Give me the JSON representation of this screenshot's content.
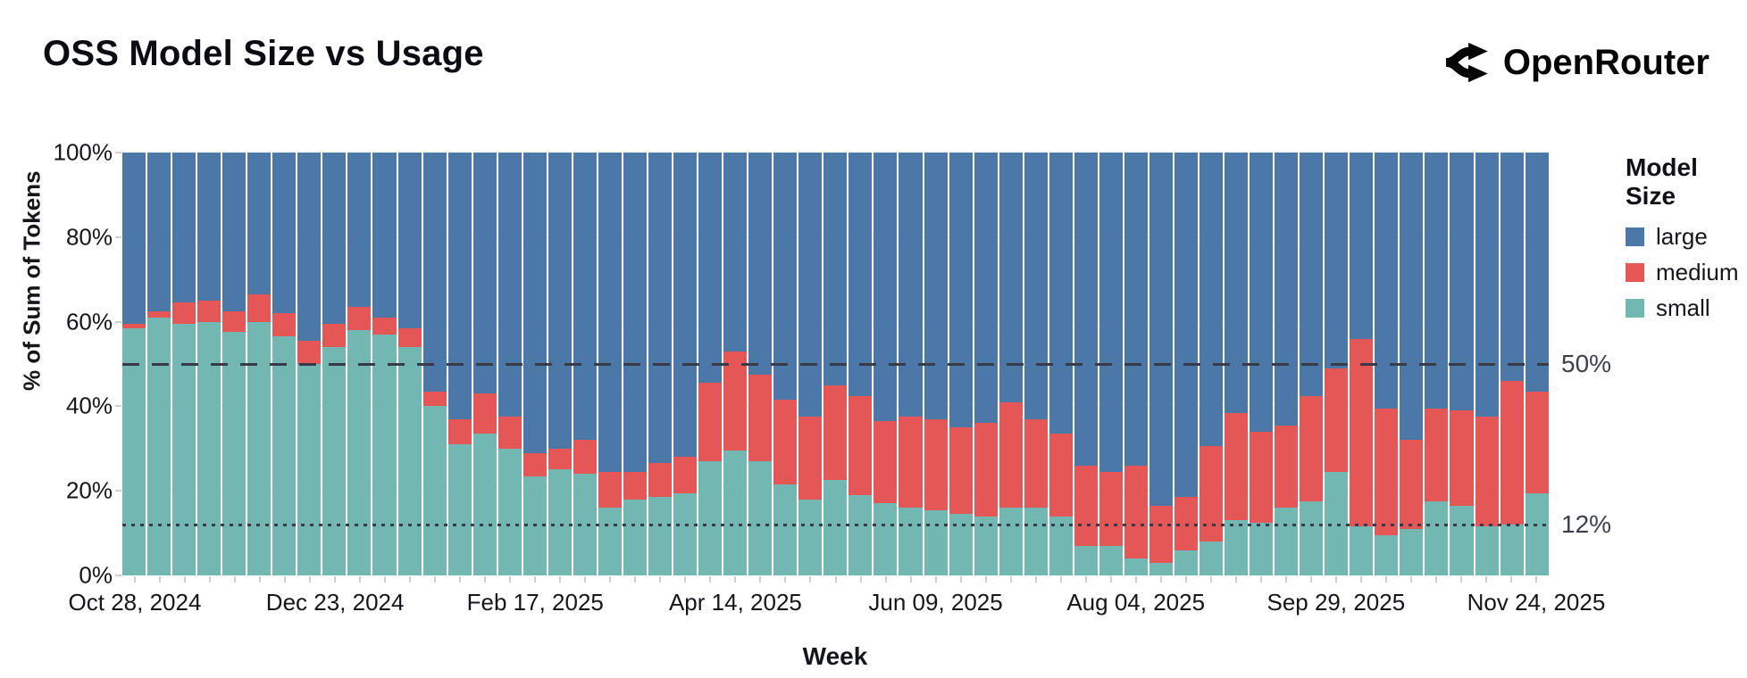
{
  "header": {
    "title": "OSS Model Size vs Usage",
    "brand": "OpenRouter"
  },
  "chart_data": {
    "type": "bar",
    "stacked": true,
    "normalized_percent": true,
    "title": "OSS Model Size vs Usage",
    "xlabel": "Week",
    "ylabel": "% of Sum of Tokens",
    "ylim": [
      0,
      100
    ],
    "weeks_count": 57,
    "y_ticks": [
      {
        "value": 100,
        "label": "100%"
      },
      {
        "value": 80,
        "label": "80%"
      },
      {
        "value": 60,
        "label": "60%"
      },
      {
        "value": 40,
        "label": "40%"
      },
      {
        "value": 20,
        "label": "20%"
      },
      {
        "value": 0,
        "label": "0%"
      }
    ],
    "x_ticks": [
      {
        "index": 0,
        "label": "Oct 28, 2024"
      },
      {
        "index": 8,
        "label": "Dec 23, 2024"
      },
      {
        "index": 16,
        "label": "Feb 17, 2025"
      },
      {
        "index": 24,
        "label": "Apr 14, 2025"
      },
      {
        "index": 32,
        "label": "Jun 09, 2025"
      },
      {
        "index": 40,
        "label": "Aug 04, 2025"
      },
      {
        "index": 48,
        "label": "Sep 29, 2025"
      },
      {
        "index": 56,
        "label": "Nov 24, 2025"
      }
    ],
    "legend_title": "Model Size",
    "legend_position": "top-right",
    "stack_order_bottom_to_top": [
      "small",
      "medium",
      "large"
    ],
    "series": [
      {
        "name": "large",
        "color": "#4c78a8",
        "values": [
          40.5,
          37.5,
          35.5,
          35,
          37.5,
          33.5,
          38,
          44.5,
          40.5,
          36.5,
          39,
          41.5,
          56.5,
          63,
          57,
          62.5,
          71,
          70,
          68,
          75.5,
          75.5,
          73.5,
          72,
          54.5,
          47,
          52.5,
          58.5,
          62.5,
          55,
          57.5,
          63.5,
          62.5,
          63,
          65,
          64,
          59,
          63,
          66.5,
          74,
          75.5,
          74,
          83.5,
          81.5,
          69.5,
          61.5,
          66,
          64.5,
          57.5,
          51,
          44,
          60.5,
          68,
          60.5,
          61,
          62.5,
          54,
          56.5
        ]
      },
      {
        "name": "medium",
        "color": "#e45756",
        "values": [
          1,
          1.5,
          5,
          5,
          5,
          6.5,
          5.5,
          5.5,
          5.5,
          5.5,
          4,
          4.5,
          3.5,
          6,
          9.5,
          7.5,
          5.5,
          5,
          8,
          8.5,
          6.5,
          8,
          8.5,
          18.5,
          23.5,
          20.5,
          20,
          19.5,
          22.5,
          23.5,
          19.5,
          21.5,
          21.5,
          20.5,
          22,
          25,
          21,
          19.5,
          19,
          17.5,
          22,
          13.5,
          12.5,
          22.5,
          25.5,
          21.5,
          19.5,
          25,
          24.5,
          44.5,
          30,
          21,
          22,
          22.5,
          26,
          34,
          24
        ]
      },
      {
        "name": "small",
        "color": "#72b7b2",
        "values": [
          58.5,
          61,
          59.5,
          60,
          57.5,
          60,
          56.5,
          50,
          54,
          58,
          57,
          54,
          40,
          31,
          33.5,
          30,
          23.5,
          25,
          24,
          16,
          18,
          18.5,
          19.5,
          27,
          29.5,
          27,
          21.5,
          18,
          22.5,
          19,
          17,
          16,
          15.5,
          14.5,
          14,
          16,
          16,
          14,
          7,
          7,
          4,
          3,
          6,
          8,
          13,
          12.5,
          16,
          17.5,
          24.5,
          11.5,
          9.5,
          11,
          17.5,
          16.5,
          11.5,
          12,
          19.5
        ]
      }
    ],
    "reference_lines": [
      {
        "value": 50,
        "label": "50%",
        "style": "dashed"
      },
      {
        "value": 12,
        "label": "12%",
        "style": "dotted"
      }
    ]
  }
}
